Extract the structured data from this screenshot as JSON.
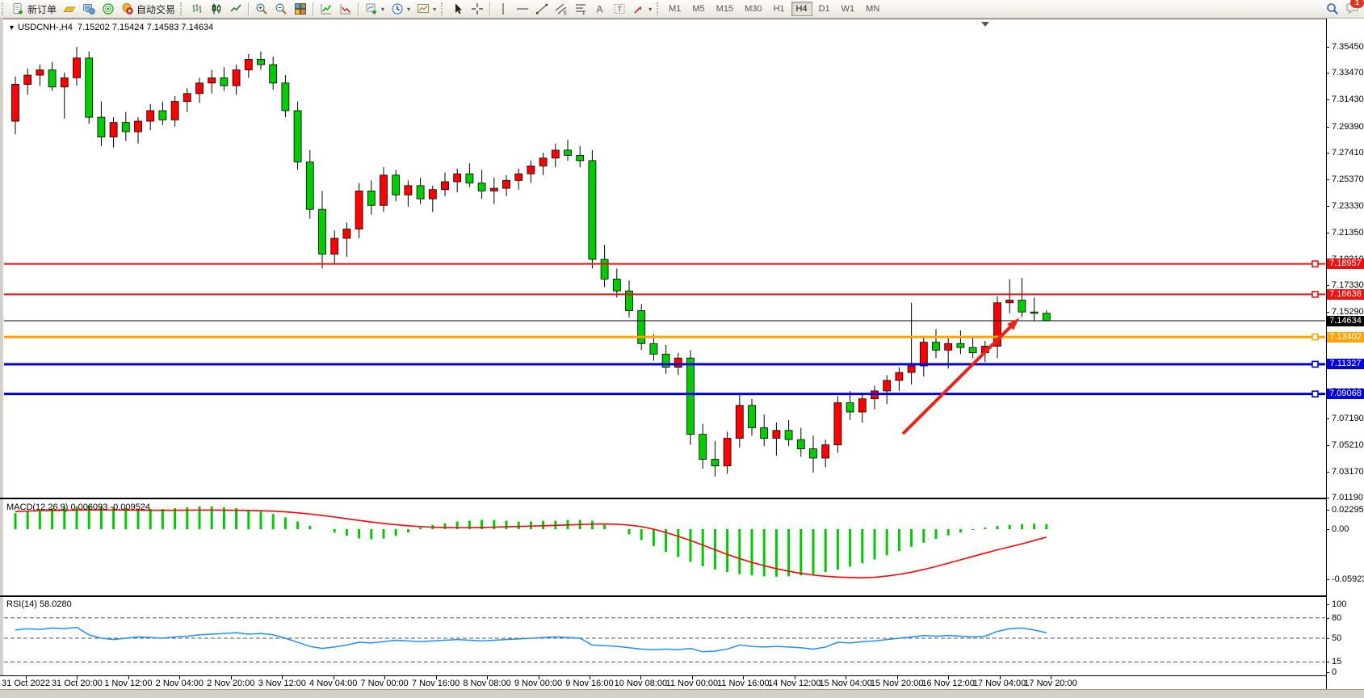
{
  "toolbar": {
    "new_order": "新订单",
    "auto_trading": "自动交易",
    "timeframes": [
      "M1",
      "M5",
      "M15",
      "M30",
      "H1",
      "H4",
      "D1",
      "W1",
      "MN"
    ],
    "selected_timeframe": "H4",
    "notification_count": "1",
    "icon_names": [
      "new-order",
      "quotes-gold",
      "terminal",
      "sonar",
      "auto-trading",
      "bar-chart",
      "candlestick-chart",
      "line-chart",
      "zoom-in",
      "zoom-out",
      "tile-windows",
      "indicator-up-green",
      "indicator-up-red",
      "new-chart",
      "periods-clock",
      "profiles",
      "cursor",
      "crosshair",
      "vertical-line",
      "horizontal-line",
      "trendline",
      "equidistant-channel",
      "fibonacci",
      "text",
      "text-label",
      "arrows",
      "search",
      "chat"
    ]
  },
  "chart": {
    "title": "USDCNH-,H4",
    "ohlc": "7.15202 7.15424 7.14583 7.14634"
  },
  "chart_data": {
    "type": "candlestick",
    "symbol": "USDCNH-",
    "period": "H4",
    "current_price": 7.14634,
    "price_axis_ticks": [
      "7.35450",
      "7.33470",
      "7.31430",
      "7.29390",
      "7.27410",
      "7.25370",
      "7.23330",
      "7.21350",
      "7.19310",
      "7.17330",
      "7.15290",
      "7.13250",
      "7.11270",
      "7.09230",
      "7.07190",
      "7.05210",
      "7.03170",
      "7.01190"
    ],
    "time_axis_labels": [
      "31 Oct 2022",
      "31 Oct 20:00",
      "1 Nov 12:00",
      "2 Nov 04:00",
      "2 Nov 20:00",
      "3 Nov 12:00",
      "4 Nov 04:00",
      "7 Nov 00:00",
      "7 Nov 16:00",
      "8 Nov 08:00",
      "9 Nov 00:00",
      "9 Nov 16:00",
      "10 Nov 08:00",
      "11 Nov 00:00",
      "11 Nov 16:00",
      "14 Nov 12:00",
      "15 Nov 04:00",
      "15 Nov 20:00",
      "16 Nov 12:00",
      "17 Nov 04:00",
      "17 Nov 20:00"
    ],
    "horizontal_lines": [
      {
        "price": 7.18957,
        "label": "7.18957",
        "color": "#ee1111",
        "thickness": 2,
        "marker": true
      },
      {
        "price": 7.16638,
        "label": "7.16638",
        "color": "#ee1111",
        "thickness": 2,
        "marker": true
      },
      {
        "price": 7.14634,
        "label": "7.14634",
        "color": "#000000",
        "thickness": 1,
        "marker": false
      },
      {
        "price": 7.13402,
        "label": "7.13402",
        "color": "#ffa400",
        "thickness": 3,
        "marker": true
      },
      {
        "price": 7.11327,
        "label": "7.11327",
        "color": "#0000dd",
        "thickness": 3,
        "marker": true
      },
      {
        "price": 7.09068,
        "label": "7.09068",
        "color": "#0000dd",
        "thickness": 3,
        "marker": true
      }
    ],
    "candles": [
      [
        7.298,
        7.332,
        7.288,
        7.326
      ],
      [
        7.326,
        7.338,
        7.318,
        7.333
      ],
      [
        7.333,
        7.341,
        7.325,
        7.337
      ],
      [
        7.337,
        7.343,
        7.321,
        7.324
      ],
      [
        7.324,
        7.335,
        7.3,
        7.331
      ],
      [
        7.331,
        7.3545,
        7.325,
        7.346
      ],
      [
        7.346,
        7.351,
        7.296,
        7.301
      ],
      [
        7.301,
        7.313,
        7.279,
        7.286
      ],
      [
        7.286,
        7.301,
        7.278,
        7.297
      ],
      [
        7.297,
        7.305,
        7.283,
        7.29
      ],
      [
        7.29,
        7.301,
        7.281,
        7.298
      ],
      [
        7.298,
        7.311,
        7.291,
        7.306
      ],
      [
        7.306,
        7.313,
        7.295,
        7.299
      ],
      [
        7.299,
        7.317,
        7.294,
        7.313
      ],
      [
        7.313,
        7.323,
        7.305,
        7.319
      ],
      [
        7.319,
        7.331,
        7.312,
        7.327
      ],
      [
        7.327,
        7.337,
        7.319,
        7.331
      ],
      [
        7.331,
        7.339,
        7.321,
        7.325
      ],
      [
        7.325,
        7.341,
        7.318,
        7.337
      ],
      [
        7.337,
        7.349,
        7.331,
        7.345
      ],
      [
        7.345,
        7.351,
        7.337,
        7.341
      ],
      [
        7.341,
        7.347,
        7.322,
        7.327
      ],
      [
        7.327,
        7.333,
        7.301,
        7.306
      ],
      [
        7.306,
        7.313,
        7.261,
        7.267
      ],
      [
        7.267,
        7.276,
        7.224,
        7.231
      ],
      [
        7.231,
        7.245,
        7.186,
        7.197
      ],
      [
        7.197,
        7.215,
        7.189,
        7.209
      ],
      [
        7.209,
        7.221,
        7.195,
        7.216
      ],
      [
        7.216,
        7.251,
        7.209,
        7.245
      ],
      [
        7.245,
        7.253,
        7.227,
        7.234
      ],
      [
        7.234,
        7.263,
        7.229,
        7.257
      ],
      [
        7.257,
        7.261,
        7.237,
        7.242
      ],
      [
        7.242,
        7.253,
        7.233,
        7.249
      ],
      [
        7.249,
        7.255,
        7.235,
        7.239
      ],
      [
        7.239,
        7.249,
        7.229,
        7.246
      ],
      [
        7.246,
        7.259,
        7.241,
        7.252
      ],
      [
        7.252,
        7.262,
        7.244,
        7.258
      ],
      [
        7.258,
        7.266,
        7.248,
        7.251
      ],
      [
        7.251,
        7.261,
        7.239,
        7.245
      ],
      [
        7.245,
        7.255,
        7.235,
        7.247
      ],
      [
        7.247,
        7.257,
        7.241,
        7.253
      ],
      [
        7.253,
        7.262,
        7.246,
        7.258
      ],
      [
        7.258,
        7.268,
        7.251,
        7.264
      ],
      [
        7.264,
        7.274,
        7.257,
        7.27
      ],
      [
        7.27,
        7.281,
        7.263,
        7.276
      ],
      [
        7.276,
        7.284,
        7.268,
        7.272
      ],
      [
        7.272,
        7.279,
        7.263,
        7.268
      ],
      [
        7.268,
        7.276,
        7.186,
        7.193
      ],
      [
        7.193,
        7.204,
        7.172,
        7.178
      ],
      [
        7.178,
        7.186,
        7.164,
        7.169
      ],
      [
        7.169,
        7.177,
        7.149,
        7.154
      ],
      [
        7.154,
        7.159,
        7.124,
        7.129
      ],
      [
        7.129,
        7.136,
        7.116,
        7.121
      ],
      [
        7.121,
        7.128,
        7.106,
        7.111
      ],
      [
        7.111,
        7.122,
        7.105,
        7.118
      ],
      [
        7.118,
        7.124,
        7.052,
        7.06
      ],
      [
        7.06,
        7.068,
        7.034,
        7.041
      ],
      [
        7.041,
        7.055,
        7.028,
        7.036
      ],
      [
        7.036,
        7.062,
        7.03,
        7.057
      ],
      [
        7.057,
        7.09,
        7.05,
        7.082
      ],
      [
        7.082,
        7.087,
        7.059,
        7.065
      ],
      [
        7.065,
        7.075,
        7.051,
        7.057
      ],
      [
        7.057,
        7.069,
        7.044,
        7.063
      ],
      [
        7.063,
        7.071,
        7.051,
        7.056
      ],
      [
        7.056,
        7.065,
        7.043,
        7.049
      ],
      [
        7.049,
        7.059,
        7.031,
        7.042
      ],
      [
        7.042,
        7.056,
        7.035,
        7.052
      ],
      [
        7.052,
        7.089,
        7.046,
        7.084
      ],
      [
        7.084,
        7.093,
        7.071,
        7.077
      ],
      [
        7.077,
        7.091,
        7.069,
        7.087
      ],
      [
        7.087,
        7.097,
        7.079,
        7.093
      ],
      [
        7.093,
        7.105,
        7.083,
        7.101
      ],
      [
        7.101,
        7.111,
        7.093,
        7.107
      ],
      [
        7.107,
        7.16,
        7.098,
        7.112
      ],
      [
        7.112,
        7.135,
        7.104,
        7.13
      ],
      [
        7.13,
        7.14,
        7.118,
        7.124
      ],
      [
        7.124,
        7.133,
        7.11,
        7.129
      ],
      [
        7.129,
        7.139,
        7.121,
        7.126
      ],
      [
        7.126,
        7.134,
        7.118,
        7.122
      ],
      [
        7.122,
        7.131,
        7.115,
        7.127
      ],
      [
        7.127,
        7.165,
        7.118,
        7.16
      ],
      [
        7.16,
        7.178,
        7.152,
        7.162
      ],
      [
        7.162,
        7.179,
        7.149,
        7.153
      ],
      [
        7.153,
        7.164,
        7.146,
        7.152
      ],
      [
        7.15202,
        7.15424,
        7.14583,
        7.14634
      ]
    ],
    "macd": {
      "display": "MACD(12,26,9) 0.006093 -0.009524",
      "label": "MACD(12,26,9)",
      "main_value": 0.006093,
      "signal_value": -0.009524,
      "axis_ticks": [
        "0.022957",
        "0.00",
        "-0.059235"
      ],
      "histogram": [
        0.019,
        0.021,
        0.023,
        0.025,
        0.026,
        0.027,
        0.028,
        0.027,
        0.026,
        0.025,
        0.024,
        0.024,
        0.024,
        0.025,
        0.026,
        0.027,
        0.027,
        0.026,
        0.025,
        0.023,
        0.021,
        0.018,
        0.014,
        0.009,
        0.004,
        0.0,
        -0.004,
        -0.008,
        -0.011,
        -0.012,
        -0.011,
        -0.008,
        -0.004,
        0.002,
        0.005,
        0.007,
        0.009,
        0.01,
        0.011,
        0.011,
        0.01,
        0.009,
        0.009,
        0.01,
        0.01,
        0.011,
        0.011,
        0.01,
        0.005,
        0.0,
        -0.006,
        -0.013,
        -0.02,
        -0.027,
        -0.033,
        -0.039,
        -0.044,
        -0.048,
        -0.051,
        -0.0535,
        -0.055,
        -0.056,
        -0.0565,
        -0.056,
        -0.055,
        -0.0535,
        -0.051,
        -0.048,
        -0.0445,
        -0.0405,
        -0.036,
        -0.031,
        -0.026,
        -0.021,
        -0.016,
        -0.0115,
        -0.0075,
        -0.004,
        -0.001,
        0.002,
        0.004,
        0.005,
        0.006,
        0.0065,
        0.006093
      ],
      "signal": [
        0.021,
        0.0215,
        0.022,
        0.0222,
        0.0224,
        0.0226,
        0.0228,
        0.0228,
        0.0227,
        0.0226,
        0.0225,
        0.0224,
        0.0224,
        0.0224,
        0.0225,
        0.0226,
        0.0226,
        0.0225,
        0.0224,
        0.0222,
        0.0219,
        0.0214,
        0.0206,
        0.0194,
        0.018,
        0.0163,
        0.0144,
        0.0124,
        0.0104,
        0.0085,
        0.0068,
        0.0053,
        0.004,
        0.003,
        0.0024,
        0.002,
        0.0018,
        0.0018,
        0.002,
        0.0024,
        0.0028,
        0.0032,
        0.0036,
        0.004,
        0.0045,
        0.005,
        0.0055,
        0.006,
        0.0062,
        0.0058,
        0.0048,
        0.003,
        0.0,
        -0.004,
        -0.0085,
        -0.0135,
        -0.019,
        -0.0245,
        -0.03,
        -0.035,
        -0.0395,
        -0.0435,
        -0.047,
        -0.05,
        -0.0525,
        -0.0545,
        -0.056,
        -0.057,
        -0.0575,
        -0.0578,
        -0.0572,
        -0.0558,
        -0.0538,
        -0.0512,
        -0.048,
        -0.0444,
        -0.0405,
        -0.0365,
        -0.0325,
        -0.0285,
        -0.0246,
        -0.021,
        -0.0175,
        -0.0135,
        -0.009524
      ]
    },
    "rsi": {
      "display": "RSI(14) 58.0280",
      "label": "RSI(14)",
      "value": 58.028,
      "axis_ticks": [
        100,
        80,
        50,
        15,
        0
      ],
      "levels": [
        80,
        50,
        15
      ],
      "values": [
        62,
        64,
        63,
        65,
        64,
        66,
        55,
        50,
        48,
        50,
        52,
        51,
        50,
        52,
        53,
        55,
        56,
        57,
        58,
        56,
        57,
        55,
        50,
        44,
        38,
        35,
        37,
        40,
        44,
        43,
        45,
        47,
        46,
        45,
        46,
        47,
        48,
        47,
        46,
        47,
        48,
        49,
        50,
        51,
        52,
        51,
        50,
        40,
        39,
        38,
        36,
        34,
        33,
        34,
        33,
        35,
        30,
        31,
        34,
        40,
        38,
        37,
        38,
        37,
        36,
        34,
        37,
        44,
        43,
        45,
        46,
        48,
        50,
        52,
        54,
        53,
        54,
        53,
        52,
        53,
        60,
        64,
        65,
        62,
        58.028
      ]
    },
    "arrow": {
      "from_bar": 72.3,
      "from_price": 7.0604,
      "to_bar": 81.8,
      "to_price": 7.1485,
      "color": "#e8251a"
    },
    "colors": {
      "bull": "#ff0000",
      "bear": "#00cc00",
      "wick": "#000000",
      "macd_hist": "#00c800",
      "macd_signal": "#ff0000",
      "rsi_line": "#1e90ff"
    }
  }
}
